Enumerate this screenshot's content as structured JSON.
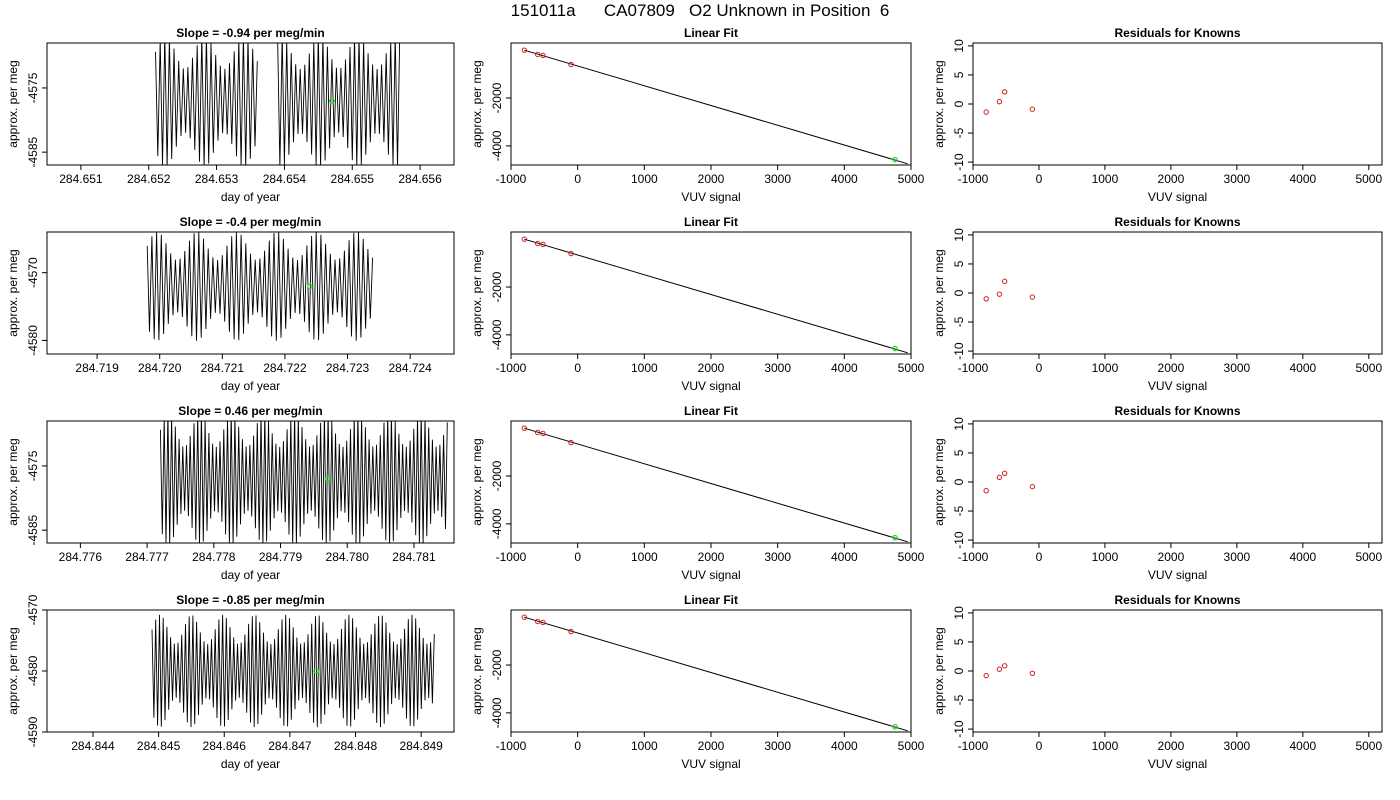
{
  "page_title": "151011a      CA07809   O2 Unknown in Position  6",
  "colors": {
    "trace": "#000000",
    "known_points": "#cc2222",
    "unknown_point": "#22dd22",
    "axis": "#000000"
  },
  "chart_data": [
    {
      "type": "line",
      "panel": "time-series",
      "row": 1,
      "title": "Slope =  -0.94  per meg/min",
      "xlabel": "day of year",
      "ylabel": "approx. per meg",
      "xlim": [
        284.6505,
        284.6565
      ],
      "ylim": [
        -4587,
        -4568
      ],
      "xticks": [
        "284.651",
        "284.652",
        "284.653",
        "284.654",
        "284.655",
        "284.656"
      ],
      "yticks": [
        "-4575",
        "-4585"
      ],
      "trace": {
        "segments": [
          [
            284.6521,
            284.6536
          ],
          [
            284.6539,
            284.6557
          ]
        ],
        "center": -4577,
        "amplitude": 9,
        "cycles": 64
      },
      "highlight": {
        "x": 284.6547,
        "y": -4577
      }
    },
    {
      "type": "scatter",
      "panel": "linear-fit",
      "row": 1,
      "title": "Linear Fit",
      "xlabel": "VUV signal",
      "ylabel": "approx. per meg",
      "xlim": [
        -1000,
        5000
      ],
      "ylim": [
        -4800,
        300
      ],
      "xticks": [
        "-1000",
        "0",
        "1000",
        "2000",
        "3000",
        "4000",
        "5000"
      ],
      "yticks": [
        "-2000",
        "-4000"
      ],
      "knowns": [
        [
          -800,
          0
        ],
        [
          -600,
          -180
        ],
        [
          -520,
          -220
        ],
        [
          -100,
          -600
        ]
      ],
      "unknown": [
        4760,
        -4577
      ],
      "fit_line": [
        [
          -800,
          0
        ],
        [
          4950,
          -4750
        ]
      ]
    },
    {
      "type": "scatter",
      "panel": "residuals",
      "row": 1,
      "title": "Residuals for Knowns",
      "xlabel": "VUV signal",
      "ylabel": "approx. per meg",
      "xlim": [
        -1000,
        5200
      ],
      "ylim": [
        -10.5,
        10.5
      ],
      "xticks": [
        "-1000",
        "0",
        "1000",
        "2000",
        "3000",
        "4000",
        "5000"
      ],
      "yticks": [
        "-10",
        "-5",
        "0",
        "5",
        "10"
      ],
      "points": [
        [
          -800,
          -1.4
        ],
        [
          -600,
          0.4
        ],
        [
          -520,
          2.1
        ],
        [
          -100,
          -0.9
        ]
      ]
    },
    {
      "type": "line",
      "panel": "time-series",
      "row": 2,
      "title": "Slope =  -0.4  per meg/min",
      "xlabel": "day of year",
      "ylabel": "approx. per meg",
      "xlim": [
        284.7182,
        284.7247
      ],
      "ylim": [
        -4582,
        -4564
      ],
      "xticks": [
        "284.719",
        "284.720",
        "284.721",
        "284.722",
        "284.723",
        "284.724"
      ],
      "yticks": [
        "-4570",
        "-4580"
      ],
      "trace": {
        "segments": [
          [
            284.7198,
            284.7234
          ]
        ],
        "center": -4572,
        "amplitude": 7,
        "cycles": 62
      },
      "highlight": {
        "x": 284.7224,
        "y": -4572
      }
    },
    {
      "type": "scatter",
      "panel": "linear-fit",
      "row": 2,
      "title": "Linear Fit",
      "xlabel": "VUV signal",
      "ylabel": "approx. per meg",
      "xlim": [
        -1000,
        5000
      ],
      "ylim": [
        -4800,
        300
      ],
      "xticks": [
        "-1000",
        "0",
        "1000",
        "2000",
        "3000",
        "4000",
        "5000"
      ],
      "yticks": [
        "-2000",
        "-4000"
      ],
      "knowns": [
        [
          -800,
          0
        ],
        [
          -600,
          -180
        ],
        [
          -520,
          -220
        ],
        [
          -100,
          -600
        ]
      ],
      "unknown": [
        4760,
        -4572
      ],
      "fit_line": [
        [
          -800,
          0
        ],
        [
          4950,
          -4750
        ]
      ]
    },
    {
      "type": "scatter",
      "panel": "residuals",
      "row": 2,
      "title": "Residuals for Knowns",
      "xlabel": "VUV signal",
      "ylabel": "approx. per meg",
      "xlim": [
        -1000,
        5200
      ],
      "ylim": [
        -10.5,
        10.5
      ],
      "xticks": [
        "-1000",
        "0",
        "1000",
        "2000",
        "3000",
        "4000",
        "5000"
      ],
      "yticks": [
        "-10",
        "-5",
        "0",
        "5",
        "10"
      ],
      "points": [
        [
          -800,
          -1.0
        ],
        [
          -600,
          -0.2
        ],
        [
          -520,
          2.0
        ],
        [
          -100,
          -0.7
        ]
      ]
    },
    {
      "type": "line",
      "panel": "time-series",
      "row": 3,
      "title": "Slope =  0.46  per meg/min",
      "xlabel": "day of year",
      "ylabel": "approx. per meg",
      "xlim": [
        284.7755,
        284.7816
      ],
      "ylim": [
        -4587,
        -4568
      ],
      "xticks": [
        "284.776",
        "284.777",
        "284.778",
        "284.779",
        "284.780",
        "284.781"
      ],
      "yticks": [
        "-4575",
        "-4585"
      ],
      "trace": {
        "segments": [
          [
            284.7772,
            284.7815
          ]
        ],
        "center": -4577,
        "amplitude": 9,
        "cycles": 78
      },
      "highlight": {
        "x": 284.7797,
        "y": -4577
      }
    },
    {
      "type": "scatter",
      "panel": "linear-fit",
      "row": 3,
      "title": "Linear Fit",
      "xlabel": "VUV signal",
      "ylabel": "approx. per meg",
      "xlim": [
        -1000,
        5000
      ],
      "ylim": [
        -4800,
        300
      ],
      "xticks": [
        "-1000",
        "0",
        "1000",
        "2000",
        "3000",
        "4000",
        "5000"
      ],
      "yticks": [
        "-2000",
        "-4000"
      ],
      "knowns": [
        [
          -800,
          0
        ],
        [
          -600,
          -180
        ],
        [
          -520,
          -220
        ],
        [
          -100,
          -600
        ]
      ],
      "unknown": [
        4760,
        -4577
      ],
      "fit_line": [
        [
          -800,
          0
        ],
        [
          4950,
          -4750
        ]
      ]
    },
    {
      "type": "scatter",
      "panel": "residuals",
      "row": 3,
      "title": "Residuals for Knowns",
      "xlabel": "VUV signal",
      "ylabel": "approx. per meg",
      "xlim": [
        -1000,
        5200
      ],
      "ylim": [
        -10.5,
        10.5
      ],
      "xticks": [
        "-1000",
        "0",
        "1000",
        "2000",
        "3000",
        "4000",
        "5000"
      ],
      "yticks": [
        "-10",
        "-5",
        "0",
        "5",
        "10"
      ],
      "points": [
        [
          -800,
          -1.5
        ],
        [
          -600,
          0.8
        ],
        [
          -520,
          1.5
        ],
        [
          -100,
          -0.8
        ]
      ]
    },
    {
      "type": "line",
      "panel": "time-series",
      "row": 4,
      "title": "Slope =  -0.85  per meg/min",
      "xlabel": "day of year",
      "ylabel": "approx. per meg",
      "xlim": [
        284.8433,
        284.8495
      ],
      "ylim": [
        -4590,
        -4570
      ],
      "xticks": [
        "284.844",
        "284.845",
        "284.846",
        "284.847",
        "284.848",
        "284.849"
      ],
      "yticks": [
        "-4570",
        "-4580",
        "-4590"
      ],
      "trace": {
        "segments": [
          [
            284.8449,
            284.8492
          ]
        ],
        "center": -4580,
        "amplitude": 8,
        "cycles": 78
      },
      "highlight": {
        "x": 284.8474,
        "y": -4580
      }
    },
    {
      "type": "scatter",
      "panel": "linear-fit",
      "row": 4,
      "title": "Linear Fit",
      "xlabel": "VUV signal",
      "ylabel": "approx. per meg",
      "xlim": [
        -1000,
        5000
      ],
      "ylim": [
        -4800,
        300
      ],
      "xticks": [
        "-1000",
        "0",
        "1000",
        "2000",
        "3000",
        "4000",
        "5000"
      ],
      "yticks": [
        "-2000",
        "-4000"
      ],
      "knowns": [
        [
          -800,
          0
        ],
        [
          -600,
          -180
        ],
        [
          -520,
          -220
        ],
        [
          -100,
          -600
        ]
      ],
      "unknown": [
        4760,
        -4580
      ],
      "fit_line": [
        [
          -800,
          0
        ],
        [
          4950,
          -4750
        ]
      ]
    },
    {
      "type": "scatter",
      "panel": "residuals",
      "row": 4,
      "title": "Residuals for Knowns",
      "xlabel": "VUV signal",
      "ylabel": "approx. per meg",
      "xlim": [
        -1000,
        5200
      ],
      "ylim": [
        -10.5,
        10.5
      ],
      "xticks": [
        "-1000",
        "0",
        "1000",
        "2000",
        "3000",
        "4000",
        "5000"
      ],
      "yticks": [
        "-10",
        "-5",
        "0",
        "5",
        "10"
      ],
      "points": [
        [
          -800,
          -0.8
        ],
        [
          -600,
          0.3
        ],
        [
          -520,
          0.9
        ],
        [
          -100,
          -0.4
        ]
      ]
    }
  ]
}
